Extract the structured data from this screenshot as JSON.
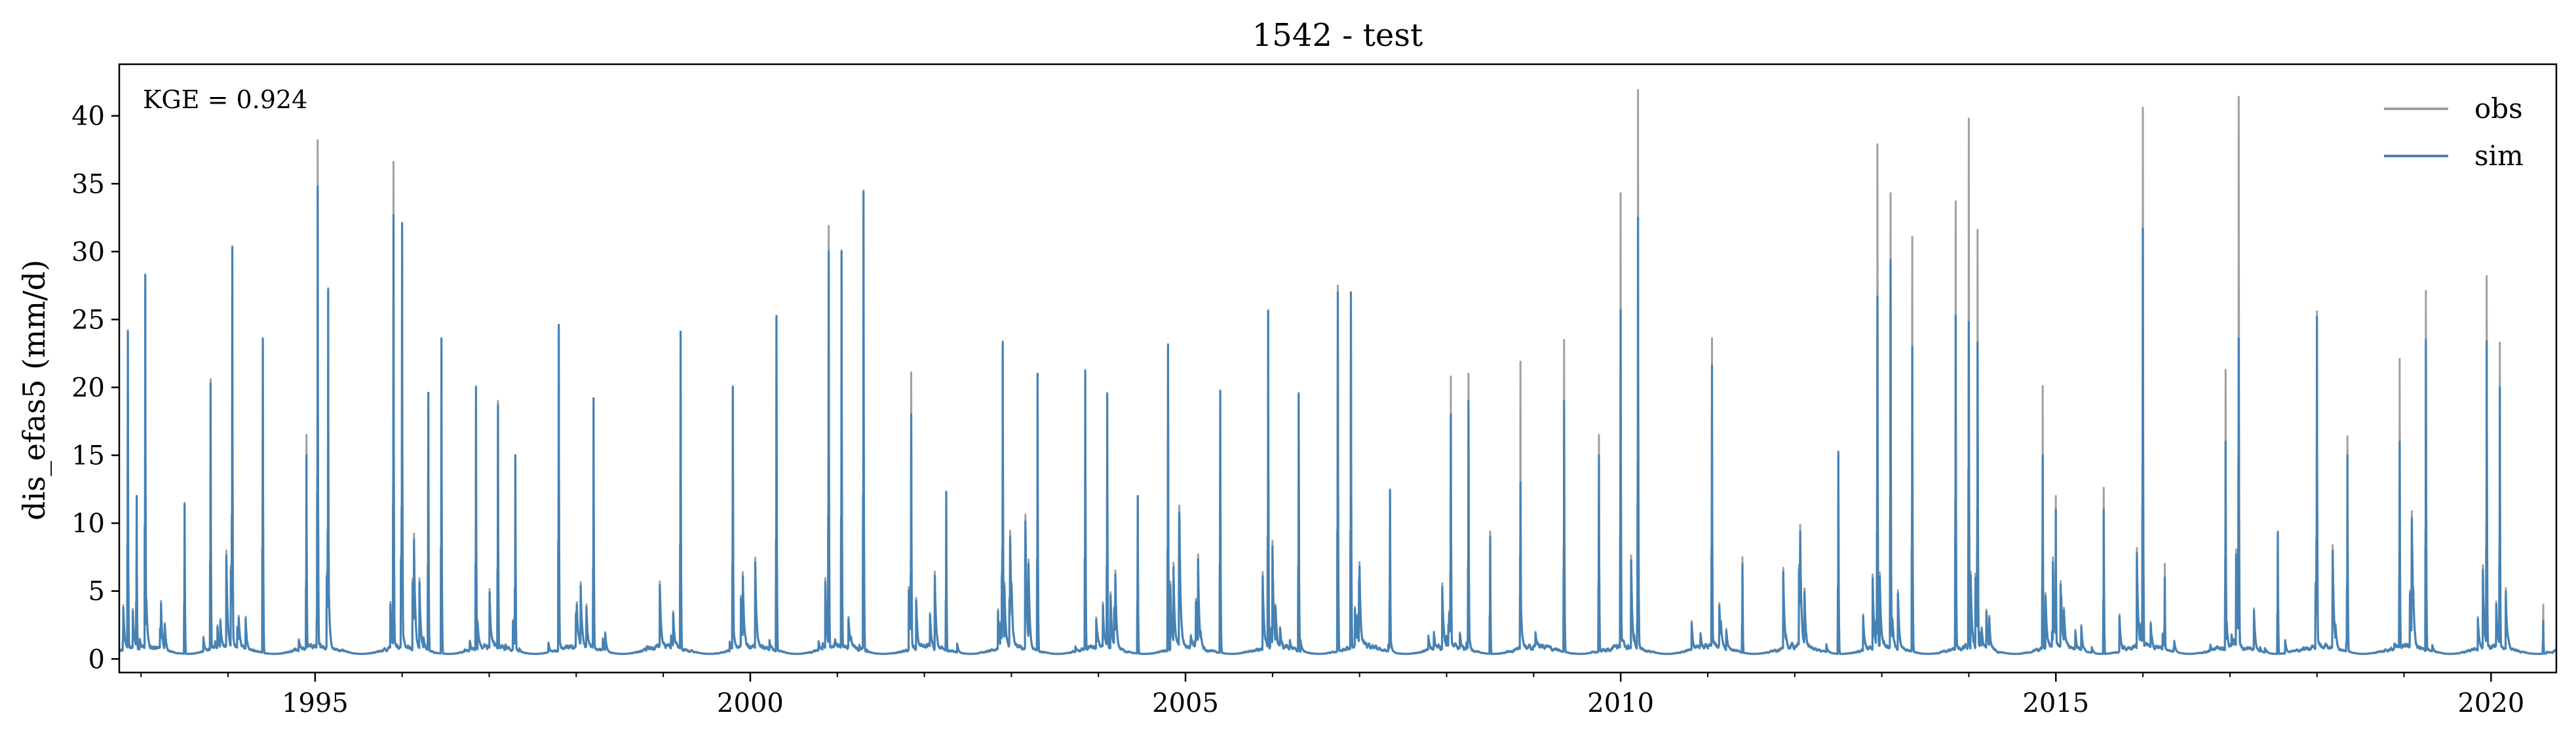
{
  "chart_data": {
    "type": "line",
    "title": "1542 - test",
    "ylabel": "dis_efas5 (mm/d)",
    "xlabel": "",
    "annotation": "KGE = 0.924",
    "xlim": [
      1992.75,
      2020.75
    ],
    "ylim": [
      -1,
      43.8
    ],
    "x_ticks": [
      1995,
      2000,
      2005,
      2010,
      2015,
      2020
    ],
    "x_tick_labels": [
      "1995",
      "2000",
      "2005",
      "2010",
      "2015",
      "2020"
    ],
    "y_ticks": [
      0,
      5,
      10,
      15,
      20,
      25,
      30,
      35,
      40
    ],
    "y_tick_labels": [
      "0",
      "5",
      "10",
      "15",
      "20",
      "25",
      "30",
      "35",
      "40"
    ],
    "grid": false,
    "legend": "upper right",
    "series": [
      {
        "name": "obs",
        "color": "#a0a0a0",
        "peaks": [
          [
            1992.85,
            24.2
          ],
          [
            1992.95,
            12
          ],
          [
            1993.05,
            28.3
          ],
          [
            1993.5,
            11.5
          ],
          [
            1993.8,
            20.6
          ],
          [
            1994.05,
            30.4
          ],
          [
            1994.4,
            23.6
          ],
          [
            1994.9,
            16.5
          ],
          [
            1995.03,
            38.2
          ],
          [
            1995.15,
            27.3
          ],
          [
            1995.9,
            36.6
          ],
          [
            1996.0,
            32.1
          ],
          [
            1996.3,
            19.6
          ],
          [
            1996.45,
            23.6
          ],
          [
            1996.85,
            20.1
          ],
          [
            1997.1,
            19
          ],
          [
            1997.3,
            15
          ],
          [
            1997.8,
            24.6
          ],
          [
            1998.2,
            19.2
          ],
          [
            1999.2,
            24.1
          ],
          [
            1999.8,
            20.1
          ],
          [
            2000.3,
            25.3
          ],
          [
            2000.9,
            31.9
          ],
          [
            2001.05,
            30.1
          ],
          [
            2001.3,
            34.5
          ],
          [
            2001.85,
            21.1
          ],
          [
            2002.25,
            12.3
          ],
          [
            2002.9,
            23.4
          ],
          [
            2003.3,
            21
          ],
          [
            2003.85,
            21.3
          ],
          [
            2004.1,
            19.6
          ],
          [
            2004.45,
            12
          ],
          [
            2004.8,
            23.2
          ],
          [
            2005.4,
            19.8
          ],
          [
            2005.95,
            25.7
          ],
          [
            2006.3,
            19.6
          ],
          [
            2006.75,
            27.5
          ],
          [
            2006.9,
            27
          ],
          [
            2007.35,
            12.5
          ],
          [
            2008.05,
            20.8
          ],
          [
            2008.25,
            21
          ],
          [
            2008.5,
            9.4
          ],
          [
            2008.85,
            21.9
          ],
          [
            2009.35,
            23.5
          ],
          [
            2009.75,
            16.5
          ],
          [
            2010.0,
            34.3
          ],
          [
            2010.2,
            41.9
          ],
          [
            2011.05,
            23.6
          ],
          [
            2011.4,
            7.5
          ],
          [
            2012.5,
            15.3
          ],
          [
            2012.95,
            37.9
          ],
          [
            2013.1,
            34.3
          ],
          [
            2013.35,
            31.1
          ],
          [
            2013.85,
            33.7
          ],
          [
            2014.0,
            39.8
          ],
          [
            2014.1,
            31.6
          ],
          [
            2014.85,
            20.1
          ],
          [
            2015.0,
            12
          ],
          [
            2015.55,
            12.6
          ],
          [
            2016.0,
            40.6
          ],
          [
            2016.25,
            7
          ],
          [
            2016.95,
            21.3
          ],
          [
            2017.1,
            41.4
          ],
          [
            2017.55,
            9.4
          ],
          [
            2018.0,
            25.6
          ],
          [
            2018.35,
            16.4
          ],
          [
            2018.95,
            22.1
          ],
          [
            2019.25,
            27.1
          ],
          [
            2019.95,
            28.2
          ],
          [
            2020.1,
            23.3
          ],
          [
            2020.6,
            4
          ]
        ]
      },
      {
        "name": "sim",
        "color": "#4682b4",
        "peaks": [
          [
            1992.85,
            24.1
          ],
          [
            1992.95,
            12
          ],
          [
            1993.05,
            28.3
          ],
          [
            1993.5,
            11.4
          ],
          [
            1993.8,
            20.3
          ],
          [
            1994.05,
            30.3
          ],
          [
            1994.4,
            23.6
          ],
          [
            1994.9,
            15
          ],
          [
            1995.03,
            34.8
          ],
          [
            1995.15,
            27.2
          ],
          [
            1995.9,
            32.7
          ],
          [
            1996.0,
            32.1
          ],
          [
            1996.3,
            19.6
          ],
          [
            1996.45,
            23.6
          ],
          [
            1996.85,
            20
          ],
          [
            1997.1,
            18.7
          ],
          [
            1997.3,
            15
          ],
          [
            1997.8,
            24.6
          ],
          [
            1998.2,
            19.2
          ],
          [
            1999.2,
            24.1
          ],
          [
            1999.8,
            20
          ],
          [
            2000.3,
            25.2
          ],
          [
            2000.9,
            30
          ],
          [
            2001.05,
            30
          ],
          [
            2001.3,
            34.4
          ],
          [
            2001.85,
            18
          ],
          [
            2002.25,
            12.3
          ],
          [
            2002.9,
            23.3
          ],
          [
            2003.3,
            21
          ],
          [
            2003.85,
            21.2
          ],
          [
            2004.1,
            19.5
          ],
          [
            2004.45,
            12
          ],
          [
            2004.8,
            23.1
          ],
          [
            2005.4,
            19.7
          ],
          [
            2005.95,
            25.6
          ],
          [
            2006.3,
            19.5
          ],
          [
            2006.75,
            27
          ],
          [
            2006.9,
            27
          ],
          [
            2007.35,
            12.4
          ],
          [
            2008.05,
            18
          ],
          [
            2008.25,
            19
          ],
          [
            2008.5,
            9
          ],
          [
            2008.85,
            13
          ],
          [
            2009.35,
            19
          ],
          [
            2009.75,
            15
          ],
          [
            2010.0,
            25.7
          ],
          [
            2010.2,
            32.5
          ],
          [
            2011.05,
            21.6
          ],
          [
            2011.4,
            7
          ],
          [
            2012.5,
            15.2
          ],
          [
            2012.95,
            26.7
          ],
          [
            2013.1,
            29.4
          ],
          [
            2013.35,
            23
          ],
          [
            2013.85,
            25.3
          ],
          [
            2014.0,
            24.8
          ],
          [
            2014.1,
            23.3
          ],
          [
            2014.85,
            15
          ],
          [
            2015.0,
            11
          ],
          [
            2015.55,
            11
          ],
          [
            2016.0,
            31.7
          ],
          [
            2016.25,
            6
          ],
          [
            2016.95,
            16
          ],
          [
            2017.1,
            23.6
          ],
          [
            2017.55,
            9.3
          ],
          [
            2018.0,
            25.2
          ],
          [
            2018.35,
            15
          ],
          [
            2018.95,
            16
          ],
          [
            2019.25,
            23.5
          ],
          [
            2019.95,
            23.4
          ],
          [
            2020.1,
            20
          ],
          [
            2020.6,
            2.8
          ]
        ]
      }
    ]
  }
}
